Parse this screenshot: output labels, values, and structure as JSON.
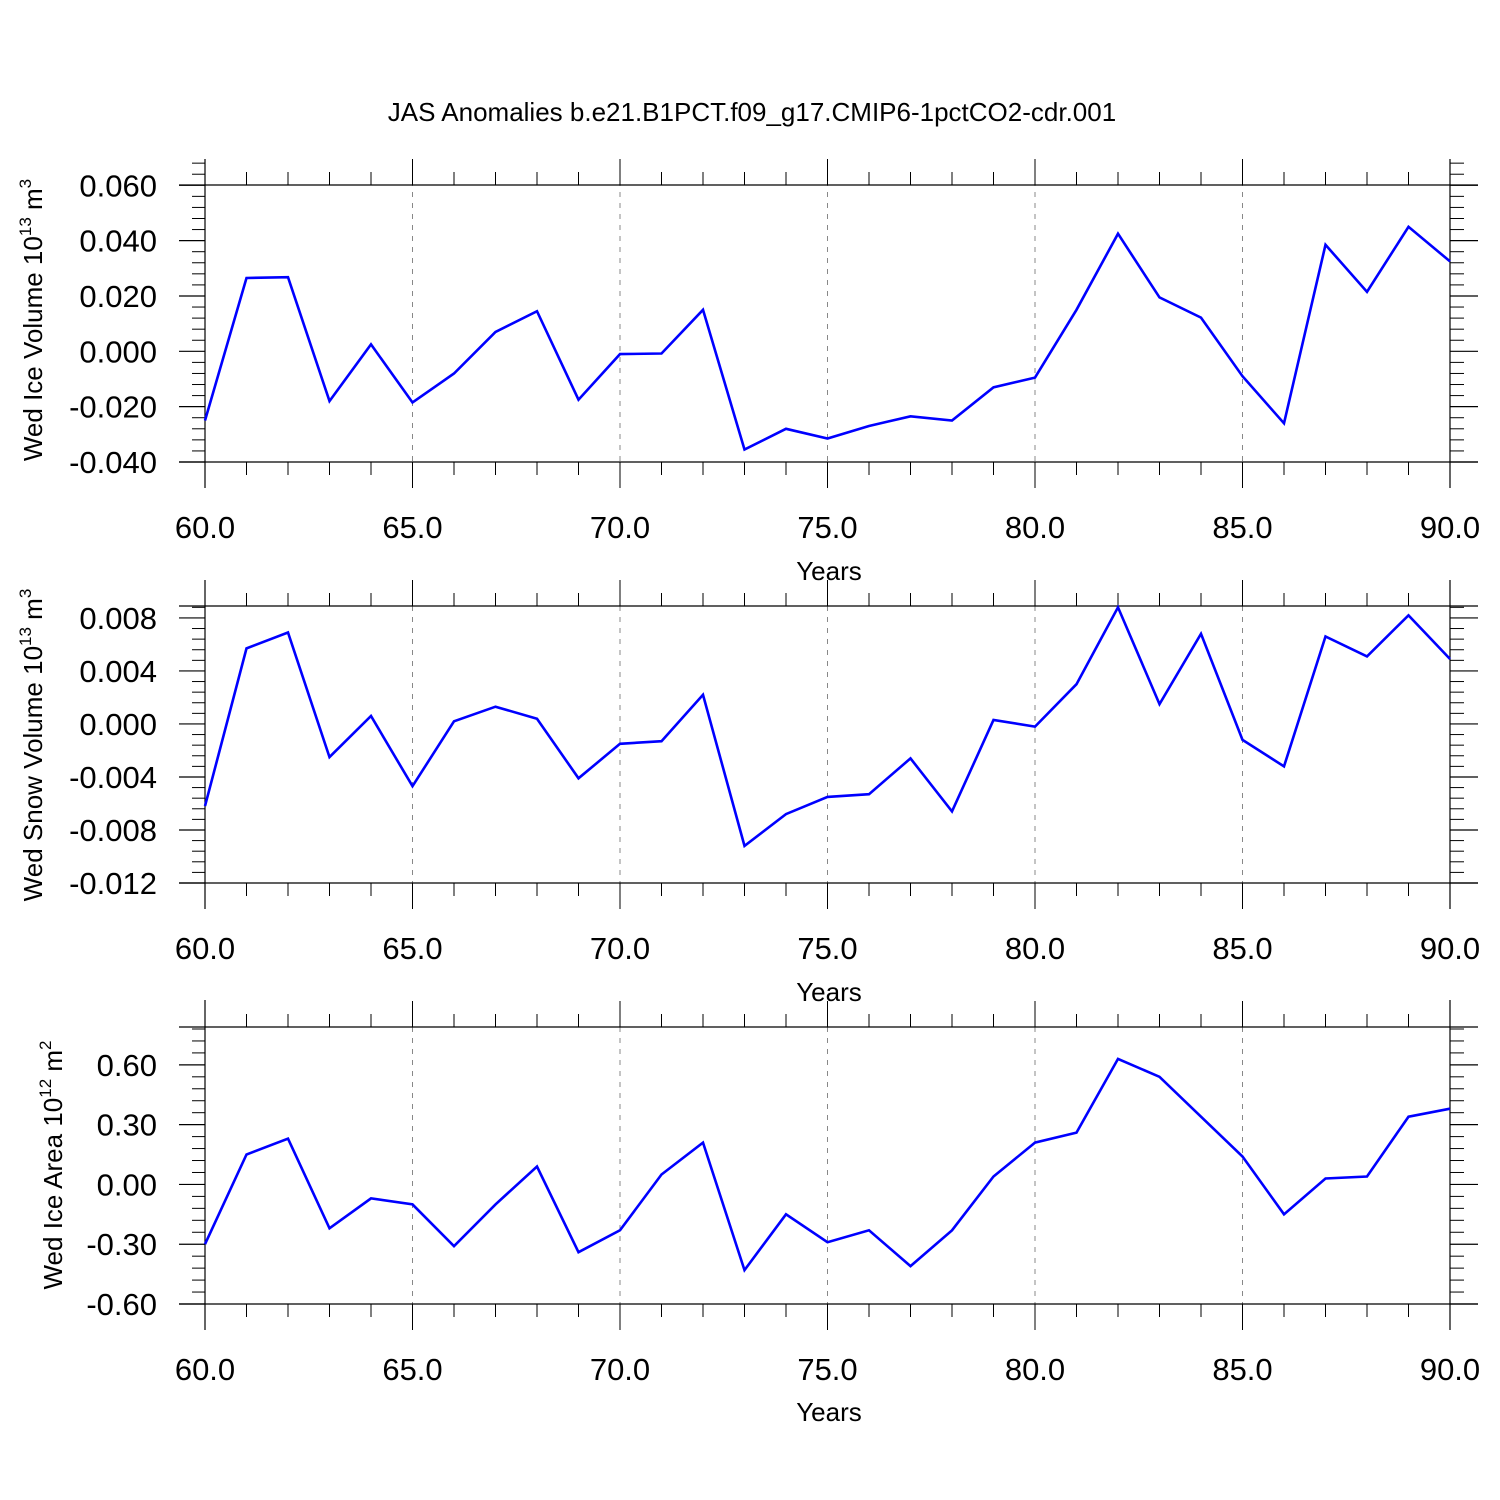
{
  "title": "JAS Anomalies b.e21.B1PCT.f09_g17.CMIP6-1pctCO2-cdr.001",
  "colors": {
    "line": "#0000ff",
    "axis": "#000000",
    "grid": "#888888"
  },
  "chart_data": [
    {
      "type": "line",
      "xlabel": "Years",
      "ylabel": {
        "text": "Wed Ice Volume 10",
        "sup": "13",
        "unit": " m",
        "unit_sup": "3"
      },
      "xlim": [
        60,
        90
      ],
      "xticks": [
        "60.0",
        "65.0",
        "70.0",
        "75.0",
        "80.0",
        "85.0",
        "90.0"
      ],
      "ylim": [
        -0.04,
        0.0695
      ],
      "yticks": [
        "0.060",
        "0.040",
        "0.020",
        "0.000",
        "-0.020",
        "-0.040"
      ],
      "x": [
        60,
        61,
        62,
        63,
        64,
        65,
        66,
        67,
        68,
        69,
        70,
        71,
        72,
        73,
        74,
        75,
        76,
        77,
        78,
        79,
        80,
        81,
        82,
        83,
        84,
        85,
        86,
        87,
        88,
        89,
        90
      ],
      "y": [
        -0.025,
        0.0265,
        0.0268,
        -0.018,
        0.0025,
        -0.0185,
        -0.008,
        0.007,
        0.0145,
        -0.0175,
        -0.001,
        -0.0008,
        0.015,
        -0.0355,
        -0.028,
        -0.0315,
        -0.027,
        -0.0235,
        -0.025,
        -0.013,
        -0.0095,
        0.015,
        0.0425,
        0.0195,
        0.0122,
        -0.009,
        -0.026,
        0.0385,
        0.0215,
        0.045,
        0.0325
      ]
    },
    {
      "type": "line",
      "xlabel": "Years",
      "ylabel": {
        "text": "Wed Snow Volume 10",
        "sup": "13",
        "unit": " m",
        "unit_sup": "3"
      },
      "xlim": [
        60,
        90
      ],
      "xticks": [
        "60.0",
        "65.0",
        "70.0",
        "75.0",
        "80.0",
        "85.0",
        "90.0"
      ],
      "ylim": [
        -0.012,
        0.0089
      ],
      "yticks": [
        "0.008",
        "0.004",
        "0.000",
        "-0.004",
        "-0.008",
        "-0.012"
      ],
      "x": [
        60,
        61,
        62,
        63,
        64,
        65,
        66,
        67,
        68,
        69,
        70,
        71,
        72,
        73,
        74,
        75,
        76,
        77,
        78,
        79,
        80,
        81,
        82,
        83,
        84,
        85,
        86,
        87,
        88,
        89,
        90
      ],
      "y": [
        -0.0062,
        0.0057,
        0.0069,
        -0.0025,
        0.0006,
        -0.0047,
        0.0002,
        0.0013,
        0.0004,
        -0.0041,
        -0.0015,
        -0.0013,
        0.0022,
        -0.0092,
        -0.0068,
        -0.0055,
        -0.0053,
        -0.0026,
        -0.0066,
        0.0003,
        -0.0002,
        0.003,
        0.0088,
        0.0015,
        0.0068,
        -0.0012,
        -0.0032,
        0.0066,
        0.0051,
        0.0082,
        0.0049
      ]
    },
    {
      "type": "line",
      "xlabel": "Years",
      "ylabel": {
        "text": "Wed Ice Area 10",
        "sup": "12",
        "unit": " m",
        "unit_sup": "2"
      },
      "xlim": [
        60,
        90
      ],
      "xticks": [
        "60.0",
        "65.0",
        "70.0",
        "75.0",
        "80.0",
        "85.0",
        "90.0"
      ],
      "ylim": [
        -0.6,
        0.79
      ],
      "yticks": [
        "0.60",
        "0.30",
        "0.00",
        "-0.30",
        "-0.60"
      ],
      "x": [
        60,
        61,
        62,
        63,
        64,
        65,
        66,
        67,
        68,
        69,
        70,
        71,
        72,
        73,
        74,
        75,
        76,
        77,
        78,
        79,
        80,
        81,
        82,
        83,
        84,
        85,
        86,
        87,
        88,
        89,
        90
      ],
      "y": [
        -0.3,
        0.15,
        0.23,
        -0.22,
        -0.07,
        -0.1,
        -0.31,
        -0.1,
        0.09,
        -0.34,
        -0.23,
        0.05,
        0.21,
        -0.43,
        -0.15,
        -0.29,
        -0.23,
        -0.41,
        -0.23,
        0.04,
        0.21,
        0.26,
        0.63,
        0.54,
        0.34,
        0.14,
        -0.15,
        0.03,
        0.04,
        0.34,
        0.38
      ]
    }
  ]
}
